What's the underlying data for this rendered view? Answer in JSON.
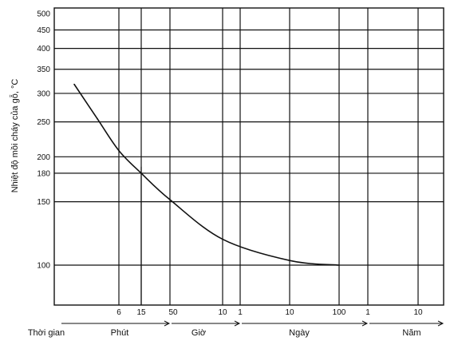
{
  "chart_data": {
    "type": "line",
    "ylabel": "Nhiệt độ mồi cháy của gỗ, °C",
    "y_scale": "logarithmic",
    "ylim": [
      78,
      500
    ],
    "y_ticks": [
      500,
      450,
      400,
      350,
      300,
      250,
      200,
      180,
      150,
      100
    ],
    "x_scale": "logarithmic time",
    "x_axis_title": "Thời gian",
    "x_segments": [
      {
        "label": "Phút",
        "ticks": [
          "6",
          "15",
          "50"
        ]
      },
      {
        "label": "Giờ",
        "ticks": [
          "10"
        ]
      },
      {
        "label": "Ngày",
        "ticks": [
          "1",
          "10",
          "100"
        ]
      },
      {
        "label": "Năm",
        "ticks": [
          "1",
          "10"
        ]
      }
    ],
    "x_tick_labels": [
      "6",
      "15",
      "50",
      "10",
      "1",
      "10",
      "100",
      "1",
      "10"
    ],
    "series": [
      {
        "points": [
          {
            "x": "~1.3 min",
            "y": 318
          },
          {
            "x": "~3 min",
            "y": 255
          },
          {
            "x": "6 min",
            "y": 208
          },
          {
            "x": "15 min",
            "y": 180
          },
          {
            "x": "50 min",
            "y": 152
          },
          {
            "x": "10 h",
            "y": 118
          },
          {
            "x": "10 days",
            "y": 103
          },
          {
            "x": "100 days",
            "y": 100
          }
        ]
      }
    ],
    "annotation": {
      "x": "15 min",
      "y": 180
    },
    "grid": true
  }
}
